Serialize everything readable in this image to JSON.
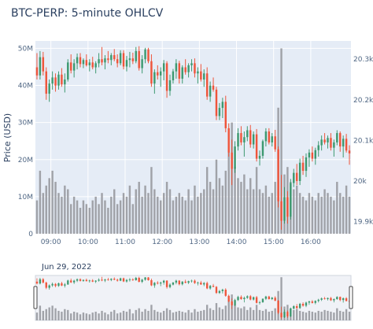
{
  "chart_data": {
    "type": "candlestick",
    "title": "BTC-PERP: 5-minute OHLCV",
    "ylabel": "Price (USD)",
    "volume_axis": {
      "ticks": [
        "0",
        "10M",
        "20M",
        "30M",
        "40M",
        "50M"
      ],
      "range": [
        0,
        52000000
      ]
    },
    "price_axis": {
      "ticks": [
        "19.9k",
        "20k",
        "20.1k",
        "20.2k",
        "20.3k"
      ],
      "range": [
        19870,
        20345
      ]
    },
    "x_axis": {
      "start": "08:35",
      "date_label": "Jun 29, 2022",
      "ticks": [
        "09:00",
        "10:00",
        "11:00",
        "12:00",
        "13:00",
        "14:00",
        "15:00",
        "16:00"
      ]
    },
    "rangeslider": true,
    "colors": {
      "up": "#3D9970",
      "down": "#EF553B",
      "volume": "#a0a2a8",
      "plot_bg": "#e5ecf6",
      "grid": "#ffffff"
    },
    "candles": [
      [
        20280,
        20315,
        20250,
        20260,
        9
      ],
      [
        20260,
        20320,
        20250,
        20305,
        17
      ],
      [
        20305,
        20318,
        20260,
        20270,
        11
      ],
      [
        20270,
        20280,
        20200,
        20215,
        13
      ],
      [
        20215,
        20250,
        20195,
        20240,
        15
      ],
      [
        20240,
        20270,
        20225,
        20255,
        17
      ],
      [
        20255,
        20265,
        20220,
        20235,
        14
      ],
      [
        20235,
        20270,
        20225,
        20262,
        11
      ],
      [
        20262,
        20278,
        20232,
        20238,
        10
      ],
      [
        20238,
        20265,
        20218,
        20250,
        13
      ],
      [
        20250,
        20300,
        20245,
        20292,
        12
      ],
      [
        20292,
        20312,
        20265,
        20272,
        8
      ],
      [
        20272,
        20300,
        20255,
        20290,
        10
      ],
      [
        20290,
        20314,
        20275,
        20305,
        9
      ],
      [
        20305,
        20315,
        20280,
        20288,
        7
      ],
      [
        20288,
        20302,
        20278,
        20298,
        9
      ],
      [
        20298,
        20312,
        20282,
        20285,
        8
      ],
      [
        20285,
        20300,
        20270,
        20292,
        7
      ],
      [
        20292,
        20306,
        20275,
        20280,
        9
      ],
      [
        20280,
        20295,
        20265,
        20290,
        10
      ],
      [
        20290,
        20315,
        20280,
        20300,
        8
      ],
      [
        20300,
        20330,
        20285,
        20292,
        11
      ],
      [
        20292,
        20310,
        20275,
        20302,
        9
      ],
      [
        20302,
        20320,
        20290,
        20298,
        7
      ],
      [
        20298,
        20315,
        20285,
        20310,
        10
      ],
      [
        20310,
        20325,
        20295,
        20300,
        12
      ],
      [
        20300,
        20312,
        20280,
        20290,
        8
      ],
      [
        20290,
        20322,
        20285,
        20315,
        9
      ],
      [
        20315,
        20322,
        20275,
        20282,
        11
      ],
      [
        20282,
        20308,
        20270,
        20298,
        10
      ],
      [
        20298,
        20318,
        20280,
        20302,
        13
      ],
      [
        20302,
        20316,
        20288,
        20295,
        8
      ],
      [
        20295,
        20330,
        20290,
        20320,
        12
      ],
      [
        20320,
        20332,
        20272,
        20278,
        14
      ],
      [
        20278,
        20310,
        20265,
        20300,
        10
      ],
      [
        20300,
        20328,
        20290,
        20324,
        13
      ],
      [
        20324,
        20328,
        20290,
        20295,
        11
      ],
      [
        20295,
        20312,
        20232,
        20240,
        18
      ],
      [
        20240,
        20275,
        20215,
        20268,
        12
      ],
      [
        20268,
        20285,
        20250,
        20260,
        10
      ],
      [
        20260,
        20280,
        20232,
        20270,
        9
      ],
      [
        20270,
        20298,
        20248,
        20290,
        11
      ],
      [
        20290,
        20295,
        20205,
        20222,
        14
      ],
      [
        20222,
        20262,
        20210,
        20248,
        12
      ],
      [
        20248,
        20276,
        20240,
        20270,
        9
      ],
      [
        20270,
        20300,
        20252,
        20290,
        10
      ],
      [
        20290,
        20296,
        20240,
        20252,
        11
      ],
      [
        20252,
        20285,
        20240,
        20280,
        10
      ],
      [
        20280,
        20300,
        20262,
        20268,
        9
      ],
      [
        20268,
        20290,
        20255,
        20285,
        12
      ],
      [
        20285,
        20300,
        20270,
        20290,
        9
      ],
      [
        20290,
        20302,
        20255,
        20265,
        13
      ],
      [
        20265,
        20280,
        20240,
        20270,
        10
      ],
      [
        20270,
        20288,
        20245,
        20250,
        11
      ],
      [
        20250,
        20275,
        20232,
        20265,
        12
      ],
      [
        20265,
        20280,
        20200,
        20208,
        18
      ],
      [
        20208,
        20245,
        20195,
        20235,
        14
      ],
      [
        20235,
        20255,
        20220,
        20225,
        12
      ],
      [
        20225,
        20232,
        20150,
        20160,
        20
      ],
      [
        20160,
        20192,
        20150,
        20180,
        15
      ],
      [
        20180,
        20205,
        20155,
        20195,
        13
      ],
      [
        20195,
        20210,
        20120,
        20130,
        17
      ],
      [
        20130,
        20142,
        20060,
        20070,
        22
      ],
      [
        20070,
        20102,
        19990,
        20030,
        30
      ],
      [
        20030,
        20098,
        20020,
        20085,
        18
      ],
      [
        20085,
        20130,
        20075,
        20118,
        15
      ],
      [
        20118,
        20135,
        20088,
        20095,
        14
      ],
      [
        20095,
        20122,
        20060,
        20108,
        16
      ],
      [
        20108,
        20135,
        20098,
        20125,
        12
      ],
      [
        20125,
        20138,
        20082,
        20090,
        15
      ],
      [
        20090,
        20122,
        20080,
        20115,
        12
      ],
      [
        20115,
        20128,
        20048,
        20055,
        18
      ],
      [
        20055,
        20075,
        20038,
        20062,
        12
      ],
      [
        20062,
        20102,
        20055,
        20098,
        11
      ],
      [
        20098,
        20130,
        20085,
        20122,
        13
      ],
      [
        20122,
        20130,
        20090,
        20095,
        10
      ],
      [
        20095,
        20118,
        20085,
        20110,
        11
      ],
      [
        20110,
        20126,
        20072,
        20078,
        14
      ],
      [
        20078,
        20085,
        19935,
        19950,
        34
      ],
      [
        19950,
        20015,
        19880,
        19902,
        50
      ],
      [
        19902,
        19985,
        19895,
        19960,
        16
      ],
      [
        19960,
        19975,
        19895,
        19912,
        18
      ],
      [
        19912,
        20005,
        19905,
        19995,
        14
      ],
      [
        19995,
        20030,
        19985,
        20020,
        12
      ],
      [
        20020,
        20042,
        19990,
        20000,
        13
      ],
      [
        20000,
        20055,
        19990,
        20045,
        11
      ],
      [
        20045,
        20062,
        20015,
        20025,
        10
      ],
      [
        20025,
        20068,
        20010,
        20058,
        9
      ],
      [
        20058,
        20078,
        20035,
        20070,
        11
      ],
      [
        20070,
        20085,
        20048,
        20055,
        10
      ],
      [
        20055,
        20082,
        20040,
        20076,
        9
      ],
      [
        20076,
        20098,
        20060,
        20088,
        11
      ],
      [
        20088,
        20112,
        20075,
        20102,
        10
      ],
      [
        20102,
        20118,
        20090,
        20095,
        12
      ],
      [
        20095,
        20112,
        20080,
        20106,
        11
      ],
      [
        20106,
        20118,
        20075,
        20082,
        10
      ],
      [
        20082,
        20102,
        20060,
        20095,
        9
      ],
      [
        20095,
        20125,
        20088,
        20118,
        14
      ],
      [
        20118,
        20122,
        20072,
        20085,
        11
      ],
      [
        20085,
        20112,
        20058,
        20104,
        10
      ],
      [
        20104,
        20116,
        20070,
        20075,
        13
      ],
      [
        20075,
        20088,
        20040,
        20068,
        10
      ]
    ]
  }
}
